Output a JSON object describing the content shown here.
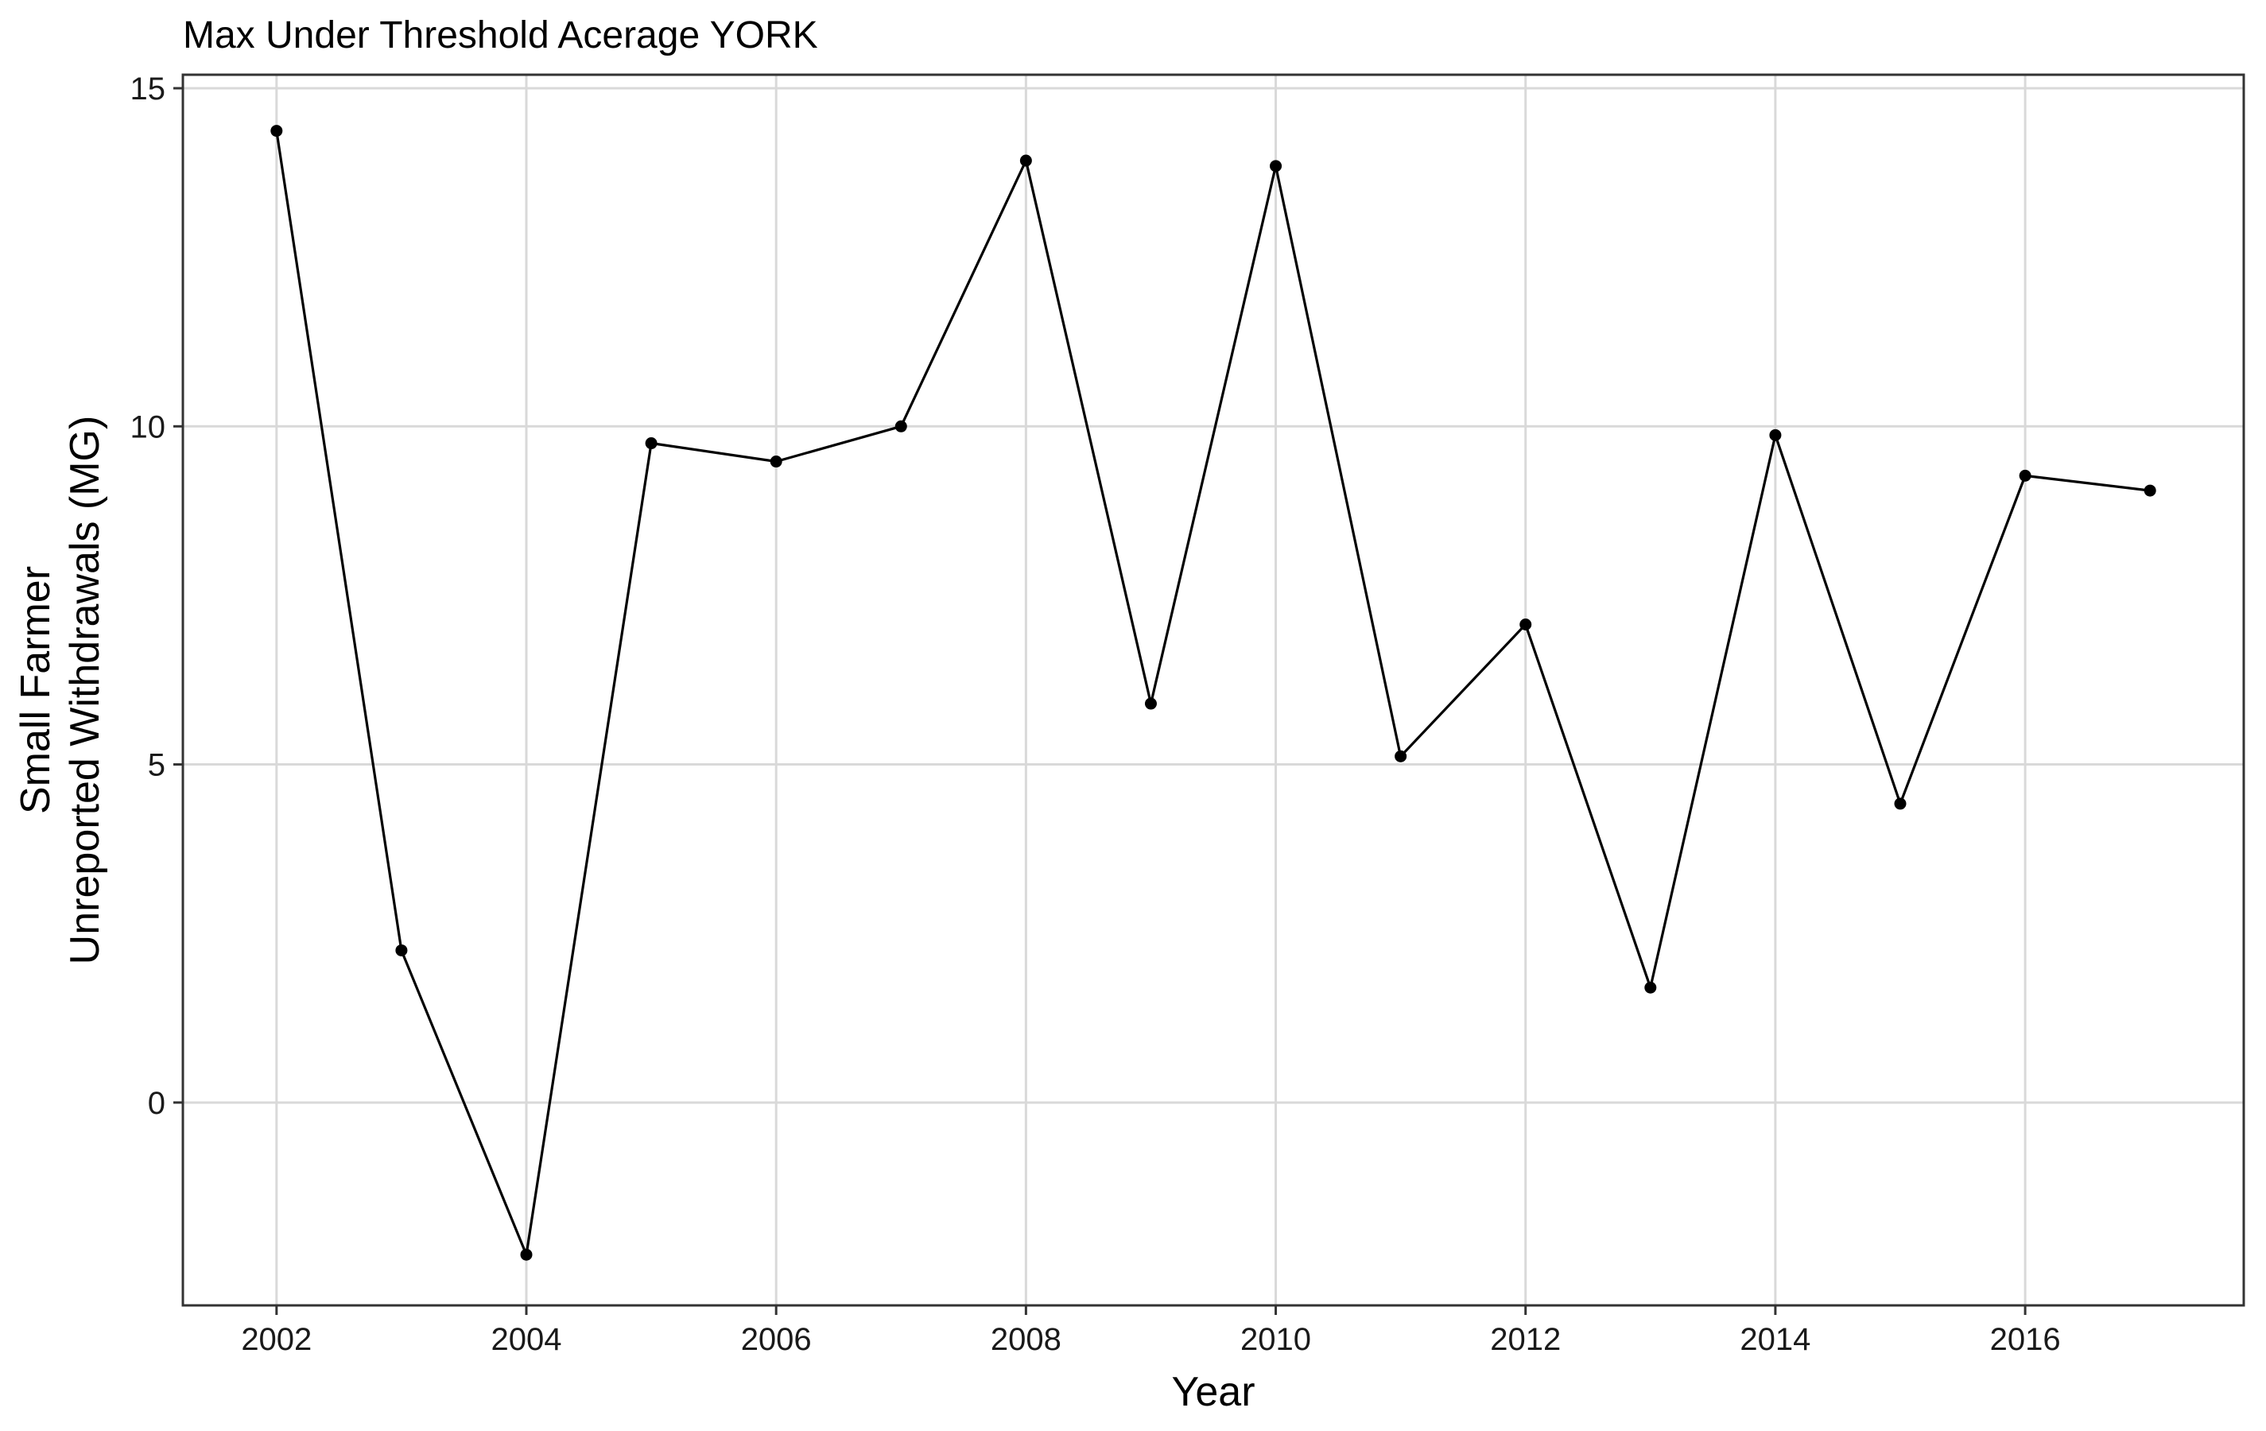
{
  "chart_data": {
    "type": "line",
    "title": "Max Under Threshold Acerage YORK",
    "xlabel": "Year",
    "ylabel_lines": [
      "Small Farmer",
      "Unreported Withdrawals (MG)"
    ],
    "xlim": [
      2001.25,
      2017.75
    ],
    "ylim": [
      -3.0,
      15.2
    ],
    "x_ticks": [
      2002,
      2004,
      2006,
      2008,
      2010,
      2012,
      2014,
      2016
    ],
    "x_tick_labels": [
      "2002",
      "2004",
      "2006",
      "2008",
      "2010",
      "2012",
      "2014",
      "2016"
    ],
    "y_ticks": [
      0,
      5,
      10,
      15
    ],
    "y_tick_labels": [
      "0",
      "5",
      "10",
      "15"
    ],
    "grid": true,
    "legend": "none",
    "colors": {
      "line": "#000000",
      "point": "#000000",
      "grid": "#d9d9d9",
      "panel_border": "#333333",
      "background": "#ffffff"
    },
    "series": [
      {
        "x": [
          2002,
          2003,
          2004,
          2005,
          2006,
          2007,
          2008,
          2009,
          2010,
          2011,
          2012,
          2013,
          2014,
          2015,
          2016,
          2017
        ],
        "y": [
          14.37,
          2.25,
          -2.25,
          9.75,
          9.48,
          10.0,
          13.93,
          5.9,
          13.85,
          5.12,
          7.07,
          1.7,
          9.87,
          4.42,
          9.27,
          9.05
        ]
      }
    ]
  }
}
